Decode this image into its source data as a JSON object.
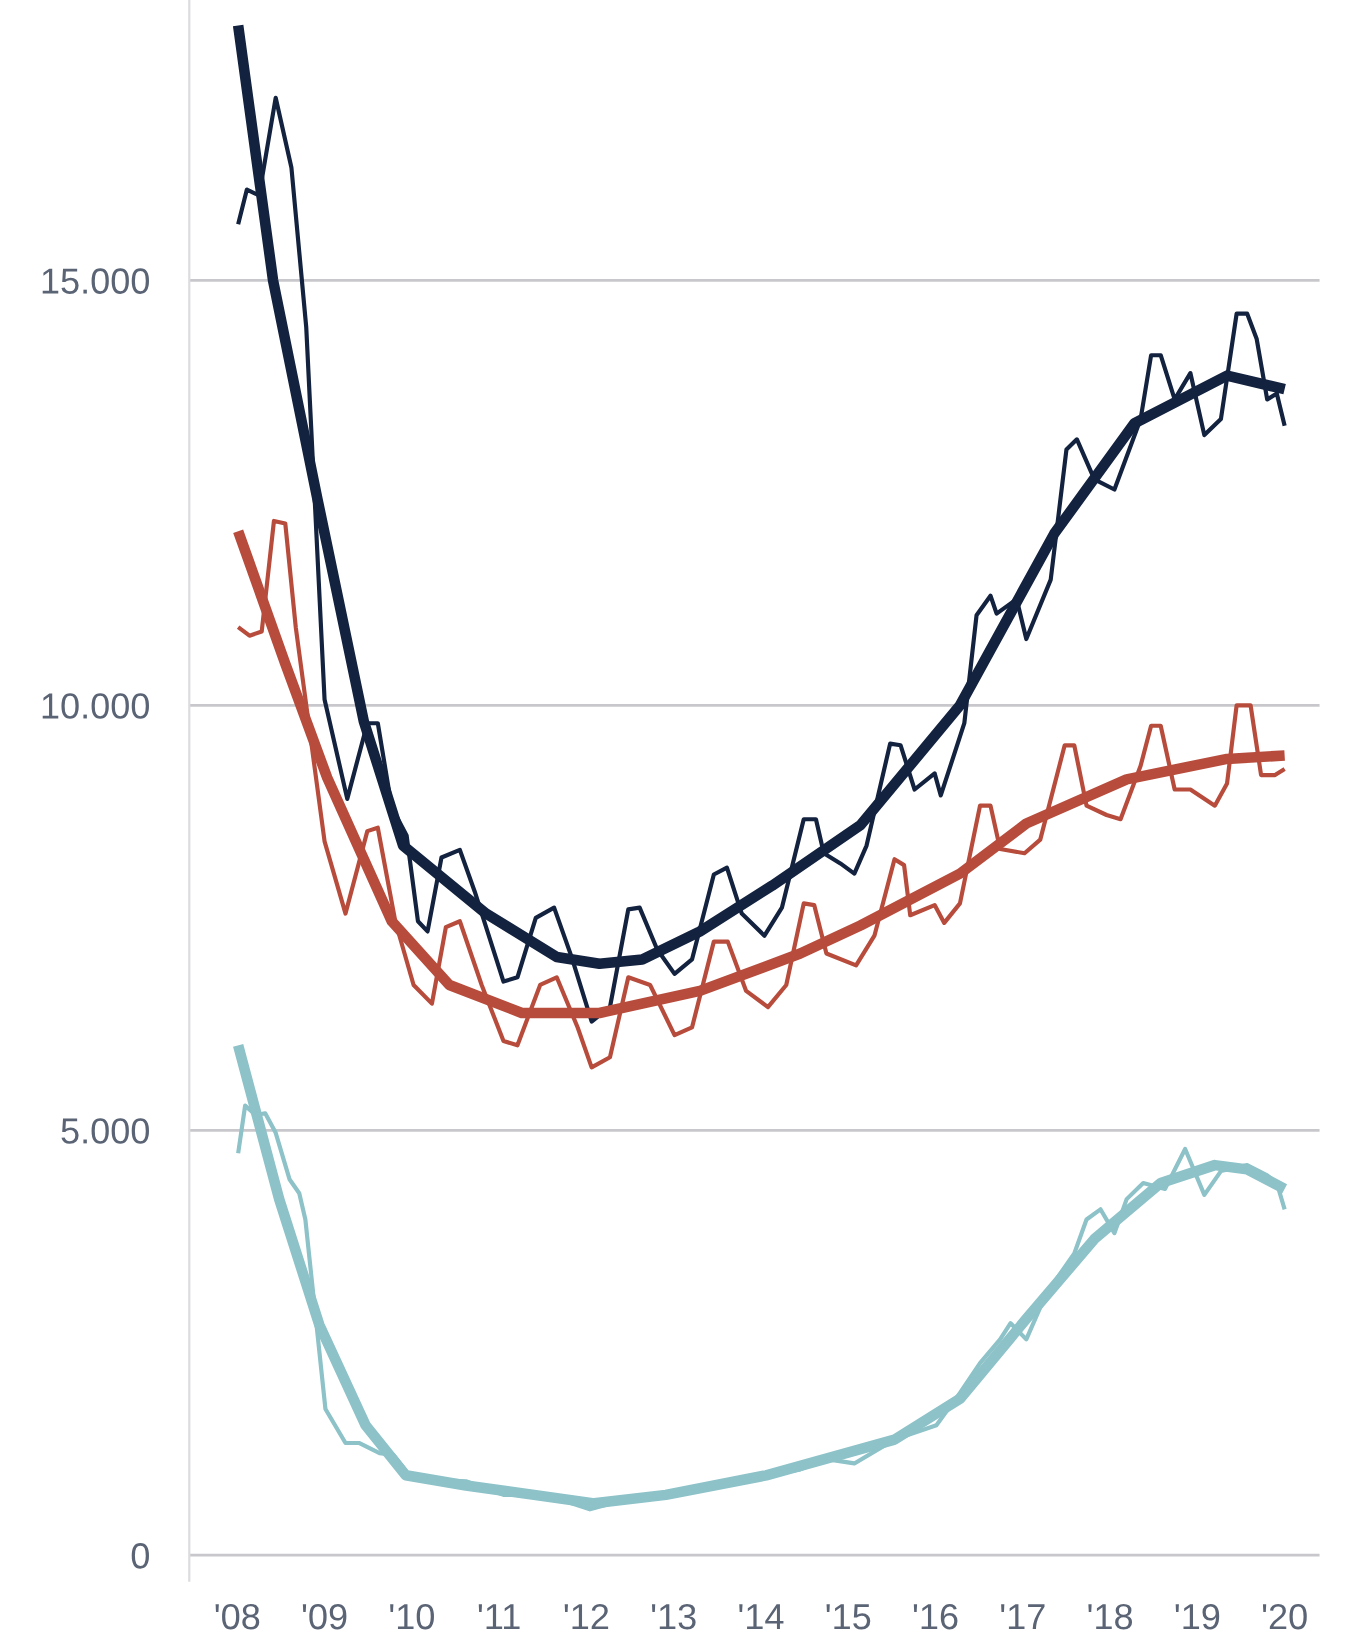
{
  "chart_data": {
    "type": "line",
    "xlim": [
      2007.45,
      2020.4
    ],
    "xticks": [
      {
        "value": 2008,
        "label": "'08"
      },
      {
        "value": 2009,
        "label": "'09"
      },
      {
        "value": 2010,
        "label": "'10"
      },
      {
        "value": 2011,
        "label": "'11"
      },
      {
        "value": 2012,
        "label": "'12"
      },
      {
        "value": 2013,
        "label": "'13"
      },
      {
        "value": 2014,
        "label": "'14"
      },
      {
        "value": 2015,
        "label": "'15"
      },
      {
        "value": 2016,
        "label": "'16"
      },
      {
        "value": 2017,
        "label": "'17"
      },
      {
        "value": 2018,
        "label": "'18"
      },
      {
        "value": 2019,
        "label": "'19"
      },
      {
        "value": 2020,
        "label": "'20"
      }
    ],
    "ylim": [
      -300,
      18300
    ],
    "yticks": [
      0,
      {
        "value": 5000,
        "label": "5.000"
      },
      {
        "value": 10000,
        "label": "10.000"
      },
      {
        "value": 15000,
        "label": "15.000"
      }
    ],
    "grid": "y",
    "series": [
      {
        "color": "#13223f",
        "x": [
          2008.01,
          2008.11,
          2008.25,
          2008.44,
          2008.62,
          2008.79,
          2009.0,
          2009.26,
          2009.49,
          2009.61,
          2009.77,
          2009.94,
          2010.07,
          2010.18,
          2010.34,
          2010.55,
          2010.72,
          2011.05,
          2011.21,
          2011.42,
          2011.63,
          2011.83,
          2012.06,
          2012.27,
          2012.48,
          2012.61,
          2012.81,
          2013.01,
          2013.21,
          2013.46,
          2013.61,
          2013.78,
          2014.04,
          2014.24,
          2014.49,
          2014.63,
          2014.72,
          2014.91,
          2015.07,
          2015.21,
          2015.48,
          2015.6,
          2015.76,
          2015.99,
          2016.06,
          2016.33,
          2016.47,
          2016.63,
          2016.7,
          2016.93,
          2017.04,
          2017.32,
          2017.5,
          2017.62,
          2017.82,
          2018.05,
          2018.35,
          2018.47,
          2018.58,
          2018.74,
          2018.92,
          2019.08,
          2019.27,
          2019.45,
          2019.57,
          2019.68,
          2019.8,
          2019.91,
          2020.0
        ],
        "values": [
          15660,
          16070,
          16000,
          17150,
          16330,
          14450,
          10070,
          8900,
          9790,
          9790,
          8800,
          8470,
          7460,
          7340,
          8210,
          8300,
          7810,
          6750,
          6800,
          7500,
          7620,
          7040,
          6280,
          6450,
          7600,
          7620,
          7130,
          6840,
          7010,
          8010,
          8090,
          7550,
          7290,
          7620,
          8660,
          8660,
          8260,
          8140,
          8020,
          8350,
          9550,
          9530,
          9010,
          9200,
          8940,
          9790,
          11060,
          11290,
          11080,
          11250,
          10780,
          11480,
          13010,
          13130,
          12660,
          12540,
          13370,
          14120,
          14120,
          13600,
          13910,
          13180,
          13370,
          14610,
          14610,
          14310,
          13600,
          13670,
          13290
        ]
      },
      {
        "color": "#b84c3c",
        "x": [
          2008.01,
          2008.14,
          2008.28,
          2008.42,
          2008.55,
          2008.67,
          2009.0,
          2009.24,
          2009.49,
          2009.61,
          2009.81,
          2010.02,
          2010.23,
          2010.39,
          2010.55,
          2010.8,
          2011.05,
          2011.21,
          2011.47,
          2011.66,
          2011.9,
          2012.06,
          2012.27,
          2012.48,
          2012.73,
          2013.01,
          2013.21,
          2013.46,
          2013.62,
          2013.83,
          2014.08,
          2014.29,
          2014.49,
          2014.61,
          2014.75,
          2015.09,
          2015.3,
          2015.53,
          2015.64,
          2015.71,
          2015.99,
          2016.1,
          2016.28,
          2016.51,
          2016.63,
          2016.74,
          2017.02,
          2017.2,
          2017.48,
          2017.59,
          2017.73,
          2017.96,
          2018.12,
          2018.35,
          2018.47,
          2018.58,
          2018.74,
          2018.92,
          2019.2,
          2019.34,
          2019.45,
          2019.61,
          2019.73,
          2019.89,
          2020.0
        ],
        "values": [
          10920,
          10820,
          10870,
          12170,
          12140,
          10920,
          8400,
          7550,
          8520,
          8560,
          7460,
          6710,
          6490,
          7390,
          7460,
          6710,
          6050,
          6000,
          6710,
          6800,
          6210,
          5740,
          5860,
          6800,
          6710,
          6120,
          6210,
          7220,
          7220,
          6640,
          6450,
          6710,
          7670,
          7650,
          7080,
          6940,
          7290,
          8190,
          8120,
          7530,
          7650,
          7440,
          7670,
          8820,
          8820,
          8310,
          8260,
          8420,
          9530,
          9530,
          8820,
          8710,
          8660,
          9290,
          9760,
          9760,
          9010,
          9010,
          8820,
          9080,
          10000,
          10000,
          9180,
          9180,
          9250
        ]
      },
      {
        "color": "#8cc2c8",
        "x": [
          2008.01,
          2008.09,
          2008.21,
          2008.32,
          2008.44,
          2008.6,
          2008.71,
          2008.78,
          2009.01,
          2009.24,
          2009.4,
          2009.63,
          2009.79,
          2009.97,
          2010.09,
          2010.62,
          2011.05,
          2011.53,
          2012.04,
          2012.54,
          2013.07,
          2013.69,
          2014.45,
          2014.75,
          2015.07,
          2015.53,
          2016.01,
          2016.28,
          2016.51,
          2016.74,
          2016.86,
          2017.04,
          2017.27,
          2017.59,
          2017.73,
          2017.89,
          2018.05,
          2018.19,
          2018.38,
          2018.63,
          2018.86,
          2019.08,
          2019.27,
          2019.57,
          2019.8,
          2019.91,
          2020.0
        ],
        "values": [
          4730,
          5290,
          5180,
          5200,
          4970,
          4420,
          4260,
          3950,
          1720,
          1320,
          1320,
          1200,
          1180,
          940,
          890,
          870,
          710,
          710,
          540,
          680,
          730,
          870,
          1010,
          1130,
          1080,
          1360,
          1530,
          1910,
          2260,
          2540,
          2730,
          2540,
          3080,
          3550,
          3950,
          4070,
          3790,
          4190,
          4380,
          4310,
          4780,
          4240,
          4520,
          4590,
          4470,
          4380,
          4070
        ]
      },
      {
        "color": "#13223f",
        "x": [
          2008.01,
          2008.41,
          2008.92,
          2009.45,
          2009.9,
          2010.85,
          2011.66,
          2012.15,
          2012.64,
          2013.3,
          2014.13,
          2015.14,
          2016.28,
          2017.36,
          2018.28,
          2019.34,
          2020.0
        ],
        "values": [
          18000,
          15000,
          12420,
          9810,
          8350,
          7550,
          7040,
          6960,
          7010,
          7340,
          7880,
          8590,
          10000,
          12020,
          13320,
          13880,
          13720
        ]
      },
      {
        "color": "#b84c3c",
        "x": [
          2008.01,
          2008.55,
          2009.03,
          2009.77,
          2010.43,
          2011.26,
          2012.15,
          2013.3,
          2014.45,
          2015.14,
          2016.28,
          2017.04,
          2018.19,
          2019.34,
          2020.0
        ],
        "values": [
          12050,
          10490,
          9150,
          7460,
          6710,
          6380,
          6380,
          6640,
          7080,
          7410,
          8020,
          8610,
          9130,
          9370,
          9410
        ]
      },
      {
        "color": "#8cc2c8",
        "x": [
          2008.01,
          2008.48,
          2008.94,
          2009.47,
          2009.93,
          2010.62,
          2011.4,
          2012.09,
          2012.91,
          2014.06,
          2015.53,
          2016.28,
          2017.04,
          2017.82,
          2018.58,
          2019.2,
          2019.57,
          2020.0
        ],
        "values": [
          6000,
          4190,
          2710,
          1530,
          940,
          820,
          710,
          610,
          710,
          940,
          1360,
          1840,
          2780,
          3720,
          4380,
          4590,
          4540,
          4310
        ]
      }
    ]
  }
}
